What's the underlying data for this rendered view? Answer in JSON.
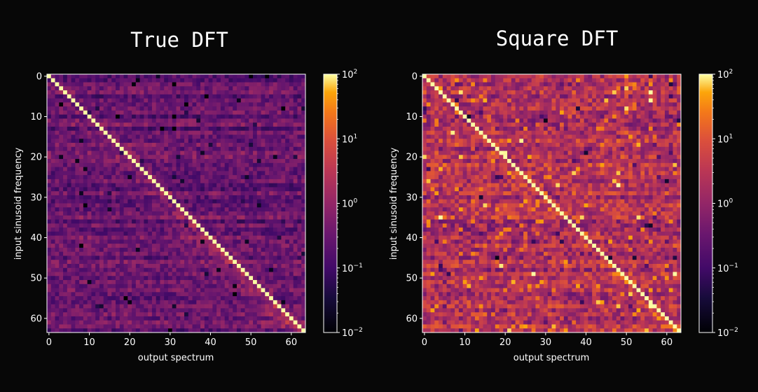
{
  "chart_data": [
    {
      "type": "heatmap",
      "title": "True DFT",
      "xlabel": "output spectrum",
      "ylabel": "input sinusoid frequency",
      "size": 64,
      "x_ticks": [
        0,
        10,
        20,
        30,
        40,
        50,
        60
      ],
      "y_ticks": [
        0,
        10,
        20,
        30,
        40,
        50,
        60
      ],
      "xlim": [
        -0.5,
        63.5
      ],
      "ylim": [
        63.5,
        -0.5
      ],
      "colormap": "inferno",
      "color_scale": "log",
      "clim": [
        0.01,
        100
      ],
      "colorbar": {
        "ticks": [
          {
            "value": 100,
            "base": "10",
            "exp": "2"
          },
          {
            "value": 10,
            "base": "10",
            "exp": "1"
          },
          {
            "value": 1,
            "base": "10",
            "exp": "0"
          },
          {
            "value": 0.1,
            "base": "10",
            "exp": "−1"
          },
          {
            "value": 0.01,
            "base": "10",
            "exp": "−2"
          }
        ]
      },
      "diagonal_value": 100,
      "off_diagonal_typical": 0.3,
      "near_diagonal_band_value": 1.5
    },
    {
      "type": "heatmap",
      "title": "Square DFT",
      "xlabel": "output spectrum",
      "ylabel": "input sinusoid frequency",
      "size": 64,
      "x_ticks": [
        0,
        10,
        20,
        30,
        40,
        50,
        60
      ],
      "y_ticks": [
        0,
        10,
        20,
        30,
        40,
        50,
        60
      ],
      "xlim": [
        -0.5,
        63.5
      ],
      "ylim": [
        63.5,
        -0.5
      ],
      "colormap": "inferno",
      "color_scale": "log",
      "clim": [
        0.01,
        100
      ],
      "colorbar": {
        "ticks": [
          {
            "value": 100,
            "base": "10",
            "exp": "2"
          },
          {
            "value": 10,
            "base": "10",
            "exp": "1"
          },
          {
            "value": 1,
            "base": "10",
            "exp": "0"
          },
          {
            "value": 0.1,
            "base": "10",
            "exp": "−1"
          },
          {
            "value": 0.01,
            "base": "10",
            "exp": "−2"
          }
        ]
      },
      "diagonal_value": 100,
      "off_diagonal_typical": 2,
      "near_diagonal_band_value": 5
    }
  ]
}
